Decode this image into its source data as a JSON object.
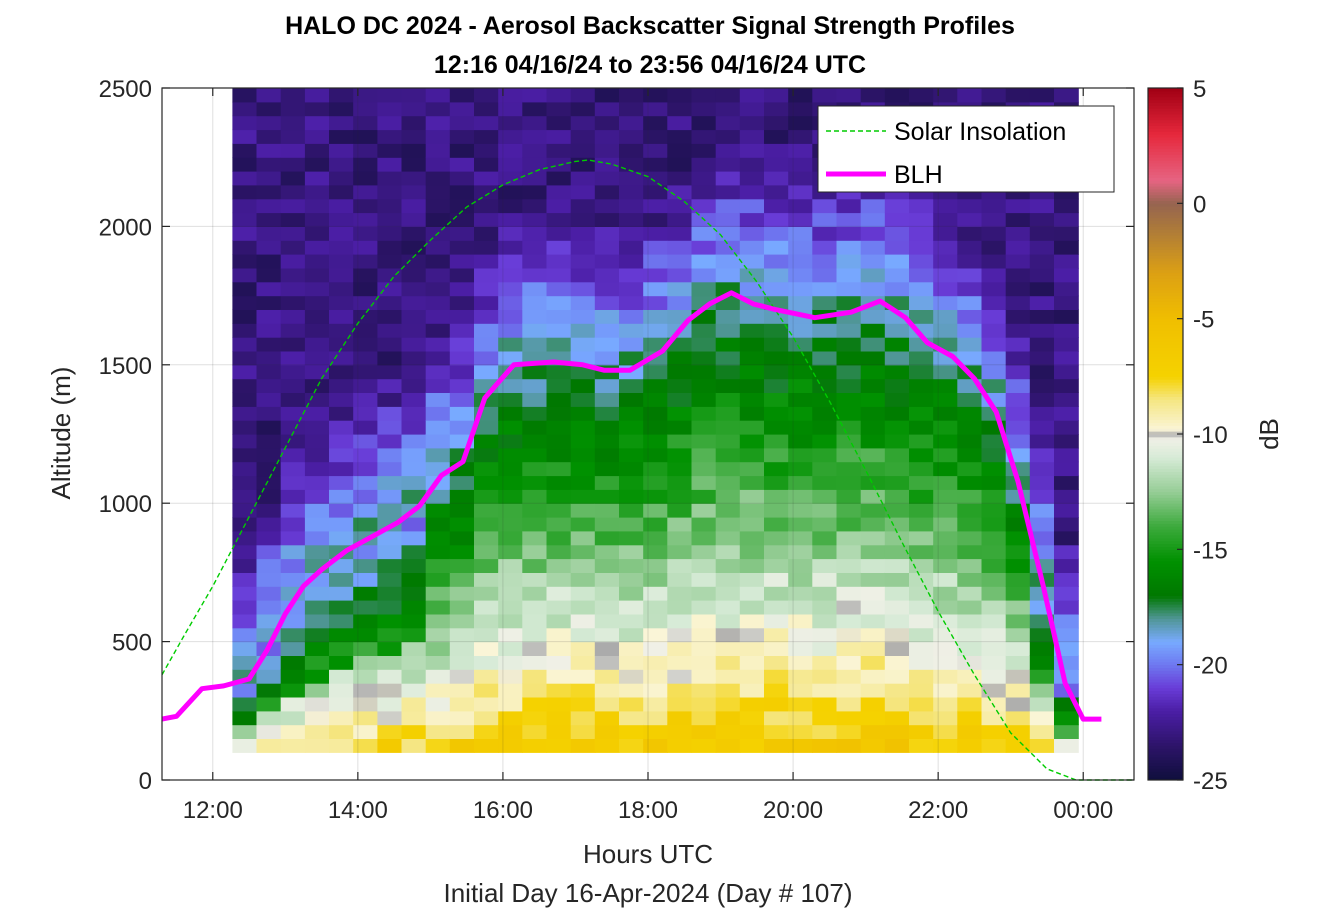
{
  "chart_data": {
    "type": "heatmap",
    "title": "HALO DC 2024 - Aerosol Backscatter Signal Strength Profiles",
    "subtitle": "12:16 04/16/24 to 23:56 04/16/24  UTC",
    "xlabel": "Hours UTC",
    "footer": "Initial Day 16-Apr-2024 (Day # 107)",
    "ylabel": "Altitude (m)",
    "colorbar_label": "dB",
    "xlim": [
      11.3,
      24.7
    ],
    "ylim": [
      0,
      2500
    ],
    "xticks": [
      12,
      14,
      16,
      18,
      20,
      22,
      24
    ],
    "xtick_labels": [
      "12:00",
      "14:00",
      "16:00",
      "18:00",
      "20:00",
      "22:00",
      "00:00"
    ],
    "yticks": [
      0,
      500,
      1000,
      1500,
      2000,
      2500
    ],
    "ytick_labels": [
      "0",
      "500",
      "1000",
      "1500",
      "2000",
      "2500"
    ],
    "clim": [
      -25,
      5
    ],
    "cticks": [
      5,
      0,
      -5,
      -10,
      -15,
      -20,
      -25
    ],
    "ctick_labels": [
      "5",
      "0",
      "-5",
      "-10",
      "-15",
      "-20",
      "-25"
    ],
    "grid": true,
    "legend_placement": "top-right",
    "legend": [
      "Solar Insolation",
      "BLH"
    ],
    "data_x_range": [
      12.27,
      23.93
    ],
    "data_y_range": [
      100,
      2500
    ],
    "data_y_bin": 50,
    "series": [
      {
        "name": "BLH",
        "color": "#ff00ff",
        "style": "solid",
        "x": [
          11.3,
          11.5,
          11.85,
          12.15,
          12.5,
          12.75,
          13.0,
          13.25,
          13.5,
          13.85,
          14.2,
          14.55,
          14.85,
          15.15,
          15.45,
          15.75,
          16.15,
          16.7,
          17.1,
          17.4,
          17.75,
          18.2,
          18.55,
          18.85,
          19.15,
          19.45,
          19.75,
          20.3,
          20.8,
          21.2,
          21.55,
          21.85,
          22.2,
          22.5,
          22.8,
          23.1,
          23.45,
          23.75,
          24.0,
          24.25
        ],
        "y": [
          220,
          230,
          330,
          340,
          365,
          470,
          600,
          700,
          760,
          830,
          880,
          930,
          990,
          1100,
          1150,
          1380,
          1500,
          1510,
          1500,
          1480,
          1480,
          1550,
          1660,
          1720,
          1760,
          1720,
          1700,
          1670,
          1690,
          1730,
          1670,
          1580,
          1530,
          1450,
          1330,
          1080,
          700,
          350,
          220,
          220
        ]
      },
      {
        "name": "Solar Insolation",
        "color": "#00cc00",
        "style": "dashed",
        "x": [
          11.3,
          11.6,
          12.0,
          12.5,
          13.0,
          13.5,
          14.0,
          14.5,
          15.0,
          15.5,
          16.0,
          16.5,
          17.0,
          17.18,
          17.5,
          18.0,
          18.5,
          19.0,
          19.5,
          20.0,
          20.5,
          21.0,
          21.5,
          22.0,
          22.5,
          23.0,
          23.5,
          23.9,
          24.0,
          24.7
        ],
        "y": [
          380,
          520,
          700,
          950,
          1200,
          1450,
          1650,
          1820,
          1950,
          2070,
          2150,
          2205,
          2235,
          2240,
          2225,
          2180,
          2090,
          1970,
          1800,
          1600,
          1370,
          1120,
          860,
          610,
          380,
          170,
          40,
          0,
          0,
          0
        ]
      }
    ]
  }
}
